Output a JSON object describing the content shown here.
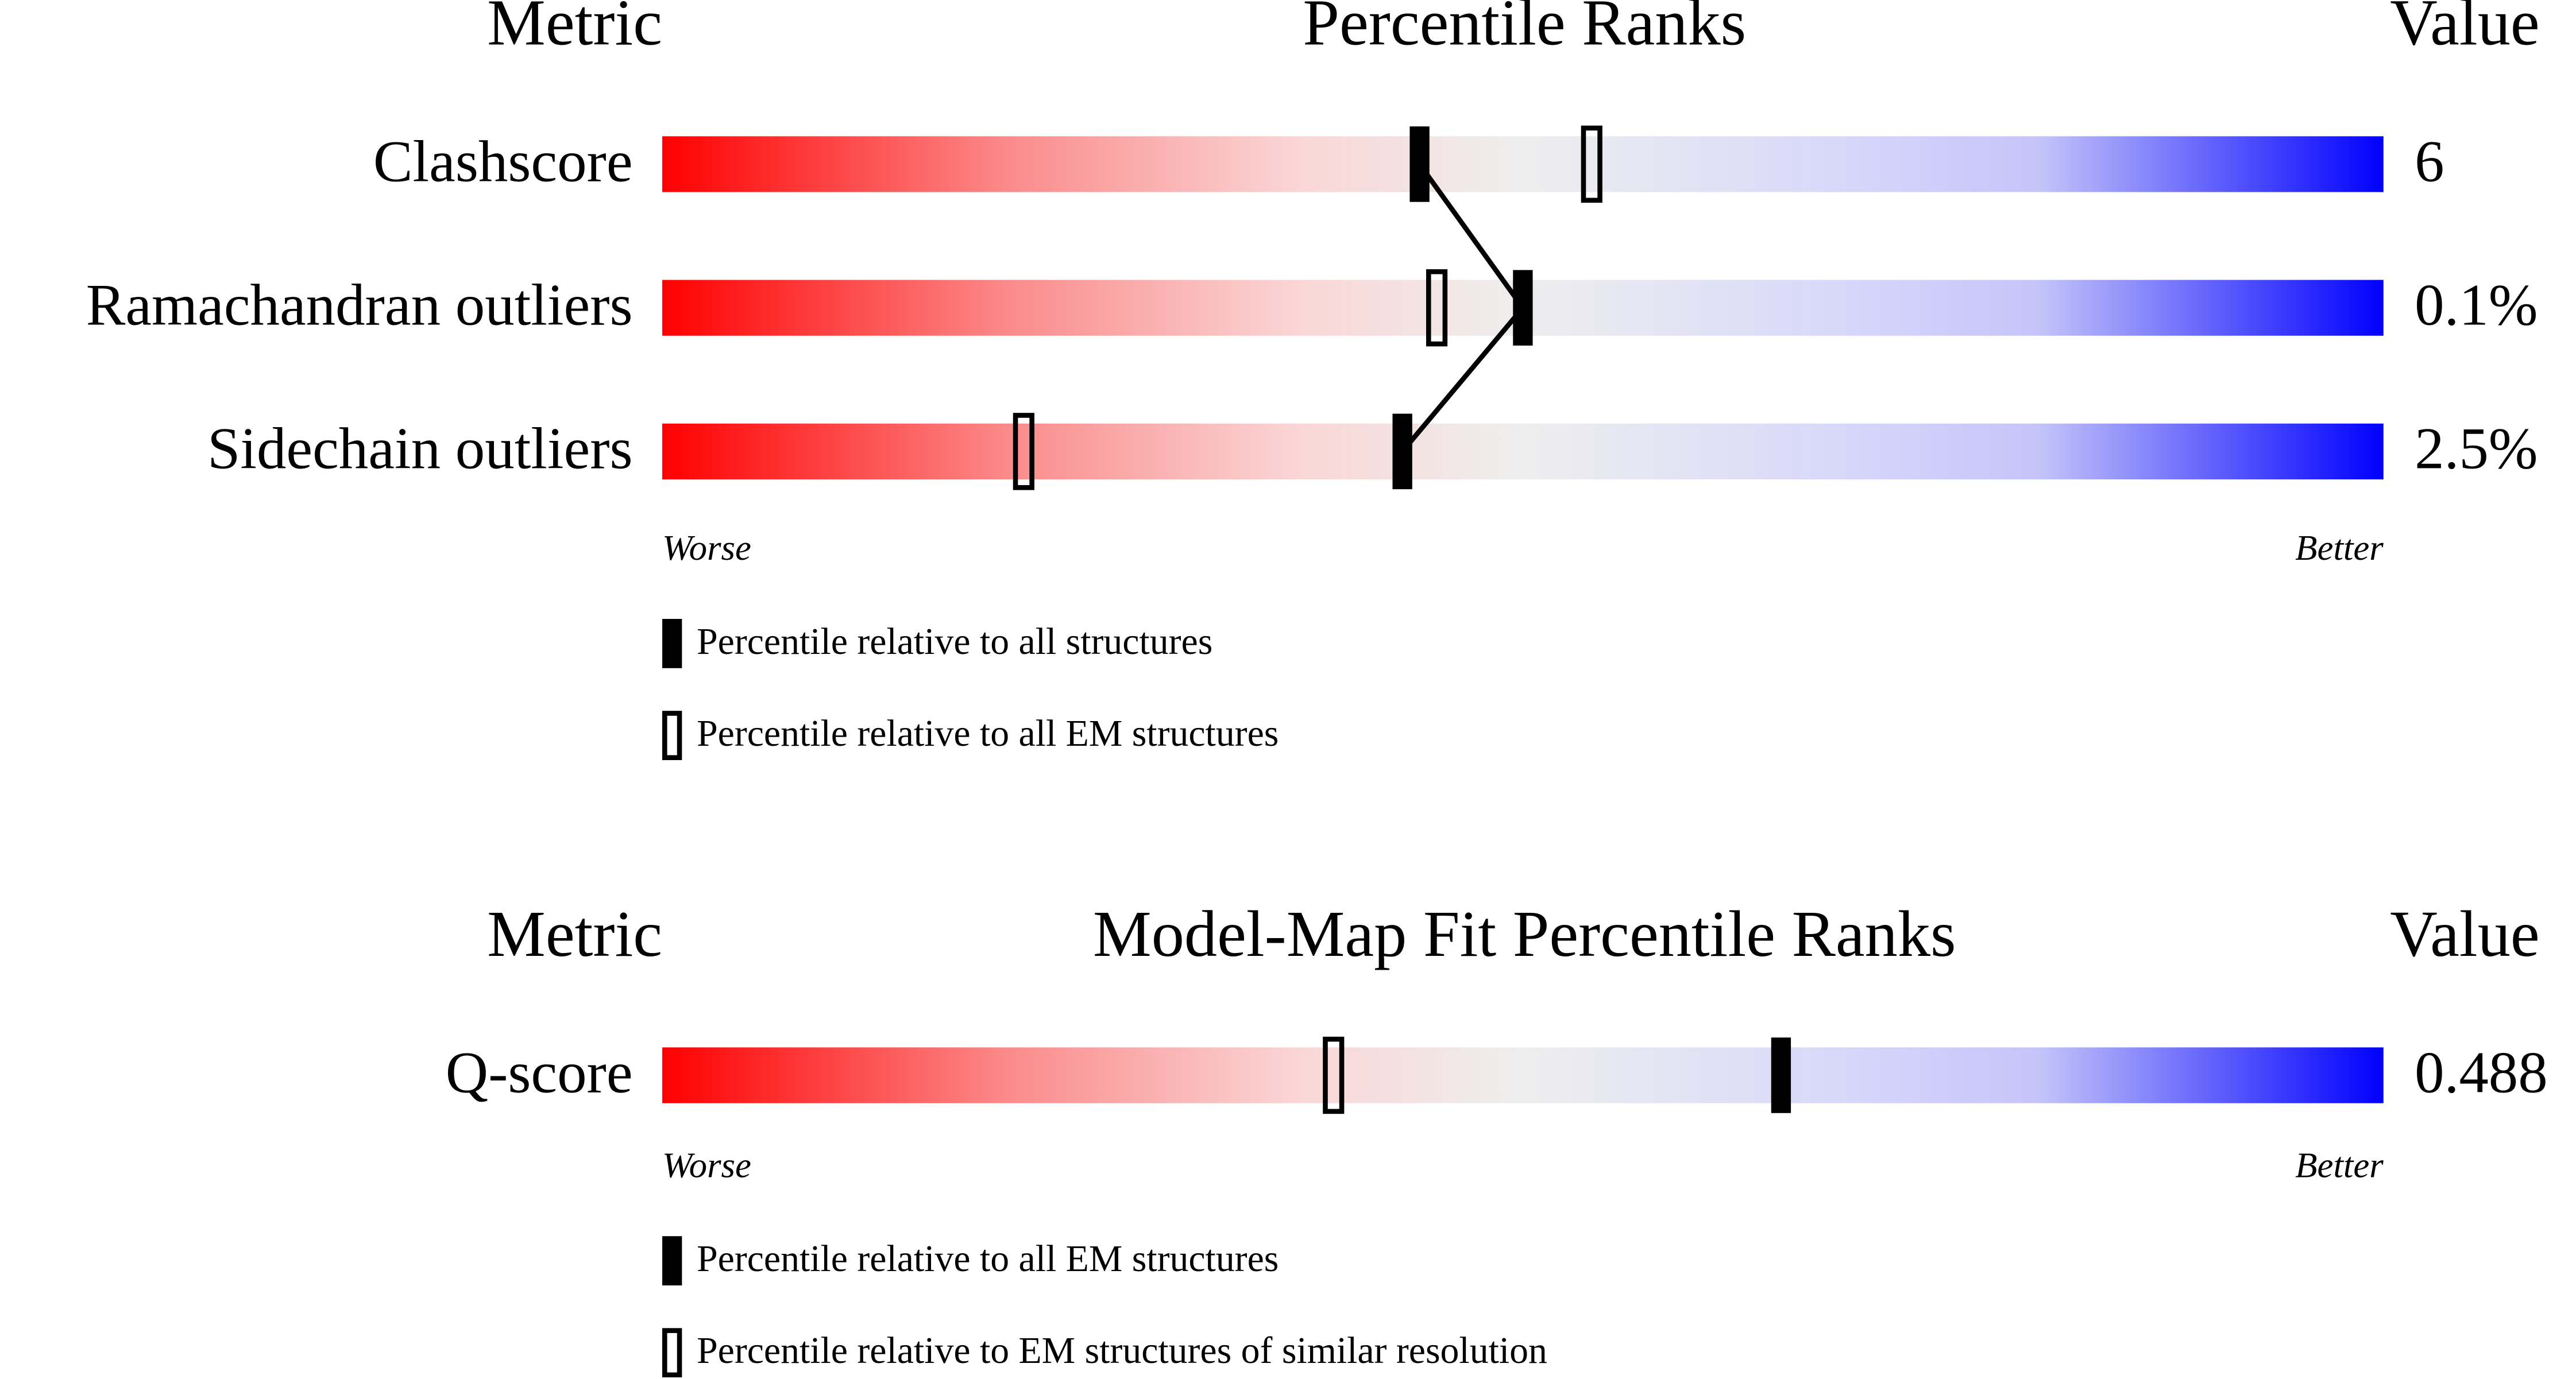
{
  "chart_data": [
    {
      "type": "percentile-slider",
      "title": "Percentile Ranks",
      "metric_header": "Metric",
      "value_header": "Value",
      "categories": [
        "Clashscore",
        "Ramachandran outliers",
        "Sidechain outliers"
      ],
      "metric_values": [
        "6",
        "0.1%",
        "2.5%"
      ],
      "xlim": [
        0,
        100
      ],
      "worse_label": "Worse",
      "better_label": "Better",
      "series": [
        {
          "name": "Percentile relative to all structures",
          "style": "filled",
          "connect": true,
          "color": "#000000",
          "values": [
            44,
            50,
            43
          ]
        },
        {
          "name": "Percentile relative to all EM structures",
          "style": "open",
          "connect": false,
          "color": "#000000",
          "values": [
            54,
            45,
            21
          ]
        }
      ]
    },
    {
      "type": "percentile-slider",
      "title": "Model-Map Fit Percentile Ranks",
      "metric_header": "Metric",
      "value_header": "Value",
      "categories": [
        "Q-score"
      ],
      "metric_values": [
        "0.488"
      ],
      "xlim": [
        0,
        100
      ],
      "worse_label": "Worse",
      "better_label": "Better",
      "series": [
        {
          "name": "Percentile relative to all EM structures",
          "style": "filled",
          "connect": true,
          "color": "#000000",
          "values": [
            65
          ]
        },
        {
          "name": "Percentile relative to EM structures of similar resolution",
          "style": "open",
          "connect": false,
          "color": "#000000",
          "values": [
            39
          ]
        }
      ]
    }
  ]
}
